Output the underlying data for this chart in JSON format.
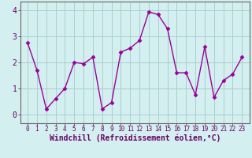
{
  "x": [
    0,
    1,
    2,
    3,
    4,
    5,
    6,
    7,
    8,
    9,
    10,
    11,
    12,
    13,
    14,
    15,
    16,
    17,
    18,
    19,
    20,
    21,
    22,
    23
  ],
  "y": [
    2.75,
    1.7,
    0.2,
    0.6,
    1.0,
    2.0,
    1.95,
    2.2,
    0.2,
    0.45,
    2.4,
    2.55,
    2.85,
    3.95,
    3.85,
    3.3,
    1.6,
    1.6,
    0.75,
    2.6,
    0.65,
    1.3,
    1.55,
    2.2
  ],
  "xlabel": "Windchill (Refroidissement éolien,°C)",
  "ylim": [
    -0.35,
    4.35
  ],
  "xlim": [
    -0.8,
    23.8
  ],
  "yticks": [
    0,
    1,
    2,
    3,
    4
  ],
  "xticks": [
    0,
    1,
    2,
    3,
    4,
    5,
    6,
    7,
    8,
    9,
    10,
    11,
    12,
    13,
    14,
    15,
    16,
    17,
    18,
    19,
    20,
    21,
    22,
    23
  ],
  "line_color": "#990099",
  "marker": "D",
  "marker_size": 2.5,
  "bg_color": "#d4efef",
  "grid_color": "#aacfcf",
  "xlabel_fontsize": 7,
  "tick_fontsize": 7,
  "xtick_fontsize": 5.5,
  "tick_color": "#660066",
  "axis_color": "#666666",
  "line_width": 1.0
}
